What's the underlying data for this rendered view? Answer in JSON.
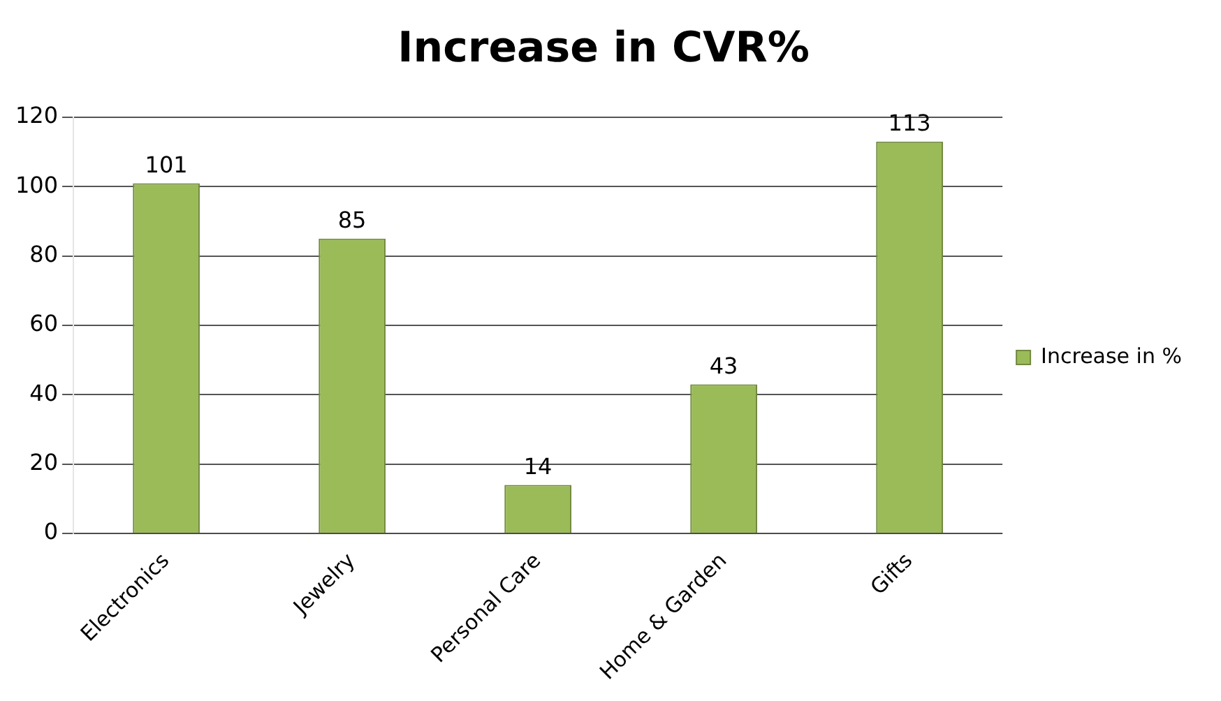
{
  "chart_data": {
    "type": "bar",
    "title": "Increase in CVR%",
    "categories": [
      "Electronics",
      "Jewelry",
      "Personal Care",
      "Home & Garden",
      "Gifts"
    ],
    "series": [
      {
        "name": "Increase in %",
        "color": "#9bbb59",
        "values": [
          101,
          85,
          14,
          43,
          113
        ]
      }
    ],
    "ylim": [
      0,
      120
    ],
    "yticks": [
      0,
      20,
      40,
      60,
      80,
      100,
      120
    ],
    "grid": "y",
    "legend": "right",
    "data_labels": true
  }
}
